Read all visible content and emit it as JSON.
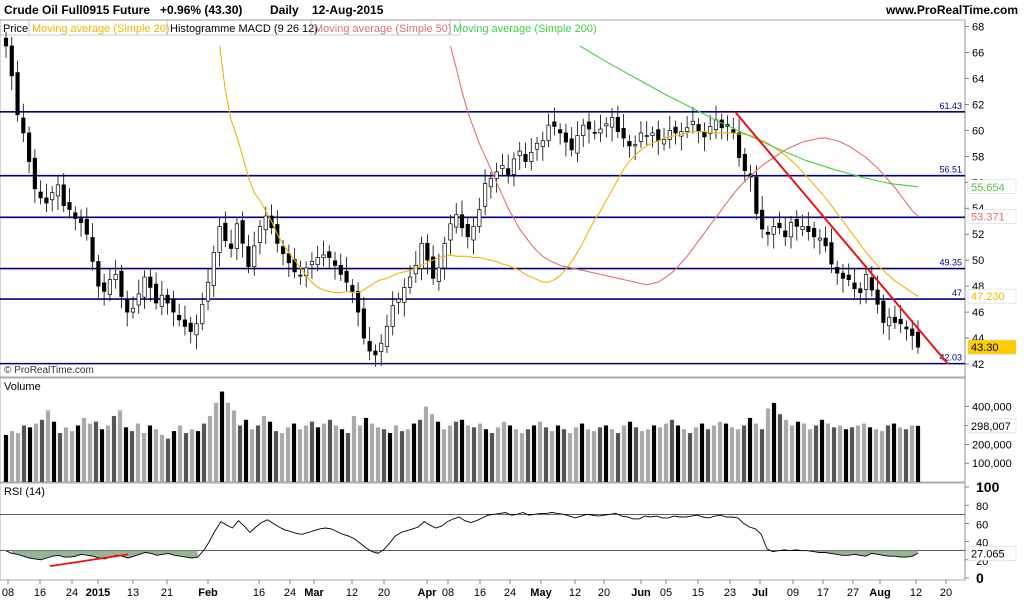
{
  "header": {
    "title": "Crude Oil Full0915 Future",
    "change": "+0.96% (43.30)",
    "period": "Daily",
    "date": "12-Aug-2015",
    "site": "www.ProRealTime.com"
  },
  "legend": [
    {
      "label": "Price",
      "color": "#000000"
    },
    {
      "label": "Moving average (Simple 20)",
      "color": "#f2b400"
    },
    {
      "label": "Histogramme MACD (9 26 12)",
      "color": "#000000"
    },
    {
      "label": "Moving average (Simple 50)",
      "color": "#e07070"
    },
    {
      "label": "Moving average (Simple 200)",
      "color": "#44cc44"
    }
  ],
  "watermark": "© ProRealTime.com",
  "colors": {
    "candle_up": "#ffffff",
    "candle_down": "#000000",
    "level_line": "#000080",
    "trend_line": "#ee1111",
    "ma20": "#f2b400",
    "ma50": "#e07070",
    "ma200": "#44cc44",
    "last_price_bg": "#ffcc00",
    "rsi_fill": "#7aa37a"
  },
  "chart_data": {
    "type": "candlestick",
    "period": "Daily",
    "x_tick_labels": [
      "08",
      "16",
      "24",
      "2015",
      "13",
      "21",
      "Feb",
      "16",
      "24",
      "Mar",
      "12",
      "20",
      "Apr",
      "08",
      "16",
      "24",
      "May",
      "12",
      "20",
      "Jun",
      "05",
      "15",
      "23",
      "Jul",
      "09",
      "17",
      "27",
      "Aug",
      "12",
      "20"
    ],
    "price_axis": {
      "ylim": [
        41,
        68.5
      ],
      "ticks": [
        42,
        44,
        46,
        48,
        50,
        52,
        54,
        56,
        58,
        60,
        62,
        64,
        66,
        68
      ]
    },
    "levels": [
      {
        "value": 61.43,
        "label": "61.43"
      },
      {
        "value": 56.51,
        "label": "56.51"
      },
      {
        "value": 53.3,
        "label": ""
      },
      {
        "value": 49.35,
        "label": "49.35"
      },
      {
        "value": 47.0,
        "label": "47"
      },
      {
        "value": 42.03,
        "label": "42.03"
      }
    ],
    "price_tags": [
      {
        "label": "55.654",
        "value": 55.654,
        "series": "ma200"
      },
      {
        "label": "53.371",
        "value": 53.371,
        "series": "ma50"
      },
      {
        "label": "47.230",
        "value": 47.23,
        "series": "ma20"
      },
      {
        "label": "43.30",
        "value": 43.3,
        "series": "last"
      }
    ],
    "closes": [
      66.5,
      64.2,
      61.2,
      59.8,
      57.6,
      55.5,
      54.8,
      54.4,
      55.2,
      55.8,
      54.2,
      53.9,
      53.2,
      52.9,
      52.0,
      49.9,
      48.0,
      47.6,
      48.5,
      48.9,
      47.2,
      46.0,
      46.3,
      47.4,
      48.7,
      47.9,
      46.7,
      47.3,
      46.7,
      46.0,
      45.4,
      44.9,
      44.5,
      45.1,
      46.6,
      48.3,
      50.6,
      52.6,
      51.5,
      50.9,
      52.8,
      51.3,
      49.5,
      51.1,
      52.6,
      53.4,
      52.5,
      51.3,
      50.5,
      49.8,
      49.1,
      48.8,
      49.4,
      49.9,
      50.2,
      50.4,
      50.2,
      49.6,
      48.9,
      48.3,
      47.6,
      46.0,
      44.0,
      43.0,
      42.7,
      43.6,
      44.9,
      46.5,
      47.0,
      47.9,
      48.7,
      49.6,
      51.3,
      50.0,
      48.6,
      49.4,
      51.3,
      52.8,
      53.5,
      52.5,
      51.8,
      52.6,
      53.9,
      55.9,
      56.3,
      56.8,
      57.3,
      56.6,
      57.8,
      58.4,
      57.6,
      58.3,
      59.0,
      59.2,
      60.4,
      60.3,
      59.8,
      59.1,
      58.5,
      59.6,
      60.4,
      60.1,
      59.8,
      60.1,
      60.5,
      61.0,
      59.9,
      59.4,
      58.8,
      58.9,
      59.8,
      59.6,
      59.8,
      59.2,
      59.3,
      60.0,
      59.8,
      59.9,
      60.2,
      60.7,
      59.9,
      59.5,
      60.3,
      60.8,
      60.2,
      60.3,
      59.8,
      57.9,
      56.9,
      56.4,
      53.6,
      52.4,
      52.0,
      52.6,
      52.5,
      51.8,
      52.9,
      52.6,
      52.6,
      52.2,
      51.8,
      51.7,
      51.1,
      49.7,
      49.0,
      48.6,
      48.5,
      47.8,
      47.5,
      48.9,
      47.7,
      46.6,
      45.2,
      45.6,
      45.2,
      45.1,
      44.7,
      44.2,
      43.3
    ],
    "ma20": [
      66.5,
      63.1,
      60.8,
      59.5,
      58.0,
      56.4,
      55.2,
      54.6,
      53.8,
      53.0,
      52.0,
      51.2,
      50.6,
      50.0,
      49.4,
      48.8,
      48.3,
      47.9,
      47.7,
      47.6,
      47.5,
      47.5,
      47.6,
      47.5,
      47.5,
      47.7,
      48.0,
      48.3,
      48.5,
      48.6,
      48.8,
      49.0,
      49.1,
      49.2,
      49.4,
      49.6,
      49.8,
      50.0,
      50.2,
      50.3,
      50.4,
      50.3,
      50.3,
      50.3,
      50.2,
      50.2,
      50.1,
      50.0,
      49.9,
      49.7,
      49.6,
      49.4,
      49.2,
      48.9,
      48.7,
      48.5,
      48.3,
      48.3,
      48.5,
      48.8,
      49.3,
      49.9,
      50.6,
      51.4,
      52.3,
      53.1,
      53.8,
      54.6,
      55.4,
      56.2,
      57.0,
      57.6,
      58.1,
      58.5,
      58.8,
      59.0,
      59.2,
      59.4,
      59.5,
      59.6,
      59.7,
      59.8,
      59.9,
      59.9,
      59.9,
      59.8,
      59.8,
      59.8,
      59.8,
      59.8,
      59.7,
      59.7,
      59.6,
      59.4,
      59.2,
      59.0,
      58.7,
      58.4,
      58.1,
      57.7,
      57.3,
      56.8,
      56.3,
      55.8,
      55.3,
      54.8,
      54.2,
      53.6,
      53.0,
      52.4,
      51.8,
      51.2,
      50.6,
      50.1,
      49.6,
      49.2,
      48.8,
      48.4,
      48.1,
      47.8,
      47.5,
      47.2
    ],
    "ma50": [
      66.5,
      64.8,
      63.0,
      61.4,
      60.2,
      59.0,
      58.0,
      57.0,
      56.0,
      55.0,
      54.0,
      53.2,
      52.4,
      51.8,
      51.2,
      50.7,
      50.3,
      50.0,
      49.8,
      49.6,
      49.5,
      49.4,
      49.3,
      49.2,
      49.1,
      49.0,
      48.9,
      48.8,
      48.7,
      48.6,
      48.5,
      48.4,
      48.3,
      48.2,
      48.1,
      48.2,
      48.3,
      48.6,
      48.9,
      49.3,
      49.8,
      50.3,
      50.9,
      51.5,
      52.1,
      52.7,
      53.3,
      53.9,
      54.5,
      55.1,
      55.6,
      56.1,
      56.5,
      56.9,
      57.3,
      57.6,
      57.9,
      58.2,
      58.5,
      58.7,
      58.9,
      59.1,
      59.2,
      59.3,
      59.4,
      59.4,
      59.3,
      59.2,
      59.0,
      58.8,
      58.5,
      58.2,
      57.9,
      57.5,
      57.1,
      56.6,
      56.1,
      55.6,
      55.0,
      54.4,
      53.8,
      53.4
    ],
    "ma200": [
      66.5,
      65.2,
      64.0,
      62.8,
      61.7,
      60.6,
      59.6,
      58.6,
      57.7,
      57.0,
      56.4,
      55.9,
      55.65
    ],
    "trend_line": {
      "from": 61.43,
      "to": 42.0
    },
    "volume": {
      "label": "Volume",
      "ticks": [
        "100,000",
        "200,000",
        "300,000",
        "400,000"
      ],
      "last_label": "298,007",
      "values": [
        250000,
        270000,
        260000,
        300000,
        290000,
        310000,
        330000,
        380000,
        320000,
        260000,
        290000,
        270000,
        300000,
        340000,
        310000,
        320000,
        280000,
        300000,
        350000,
        380000,
        290000,
        270000,
        310000,
        260000,
        300000,
        280000,
        250000,
        230000,
        270000,
        300000,
        260000,
        280000,
        270000,
        310000,
        350000,
        420000,
        480000,
        420000,
        380000,
        300000,
        330000,
        280000,
        300000,
        350000,
        320000,
        270000,
        260000,
        290000,
        310000,
        280000,
        300000,
        320000,
        290000,
        310000,
        330000,
        300000,
        280000,
        260000,
        350000,
        300000,
        340000,
        310000,
        290000,
        280000,
        260000,
        300000,
        270000,
        280000,
        310000,
        330000,
        400000,
        360000,
        320000,
        280000,
        300000,
        320000,
        330000,
        300000,
        290000,
        310000,
        280000,
        260000,
        290000,
        320000,
        300000,
        280000,
        260000,
        280000,
        300000,
        320000,
        290000,
        270000,
        300000,
        280000,
        260000,
        290000,
        310000,
        280000,
        270000,
        290000,
        300000,
        280000,
        260000,
        300000,
        320000,
        290000,
        270000,
        280000,
        300000,
        290000,
        310000,
        330000,
        300000,
        280000,
        260000,
        290000,
        310000,
        280000,
        300000,
        320000,
        310000,
        290000,
        280000,
        300000,
        340000,
        310000,
        280000,
        390000,
        420000,
        360000,
        330000,
        300000,
        320000,
        310000,
        280000,
        300000,
        330000,
        310000,
        290000,
        300000,
        280000,
        290000,
        300000,
        310000,
        290000,
        280000,
        270000,
        300000,
        310000,
        290000,
        280000,
        300000,
        298007
      ]
    },
    "rsi": {
      "label": "RSI (14)",
      "ticks": [
        0,
        20,
        40,
        60,
        80,
        100
      ],
      "tick_labels": [
        "0",
        "20",
        "40",
        "60",
        "80",
        "100"
      ],
      "levels": [
        30,
        70
      ],
      "last_label": "27.065",
      "last": 27.065,
      "values": [
        30,
        27,
        26,
        24,
        22,
        21,
        20,
        22,
        24,
        25,
        23,
        23,
        24,
        26,
        25,
        24,
        22,
        21,
        23,
        25,
        24,
        22,
        24,
        26,
        28,
        27,
        25,
        26,
        27,
        25,
        24,
        23,
        22,
        23,
        30,
        40,
        52,
        62,
        58,
        55,
        63,
        57,
        50,
        56,
        61,
        64,
        60,
        56,
        53,
        51,
        49,
        48,
        50,
        52,
        54,
        55,
        54,
        51,
        48,
        46,
        43,
        38,
        33,
        29,
        27,
        31,
        38,
        46,
        50,
        52,
        54,
        56,
        62,
        58,
        55,
        57,
        62,
        65,
        67,
        63,
        61,
        63,
        66,
        69,
        70,
        71,
        72,
        69,
        70,
        72,
        69,
        70,
        71,
        71,
        72,
        71,
        70,
        68,
        66,
        68,
        70,
        69,
        68,
        69,
        70,
        71,
        68,
        67,
        65,
        65,
        68,
        67,
        68,
        66,
        66,
        68,
        67,
        67,
        68,
        69,
        67,
        66,
        68,
        69,
        67,
        67,
        66,
        60,
        56,
        54,
        48,
        32,
        29,
        30,
        31,
        30,
        31,
        30,
        30,
        29,
        28,
        28,
        27,
        26,
        25,
        25,
        26,
        25,
        24,
        27,
        26,
        25,
        24,
        24,
        23,
        23,
        24,
        27.065
      ]
    }
  }
}
